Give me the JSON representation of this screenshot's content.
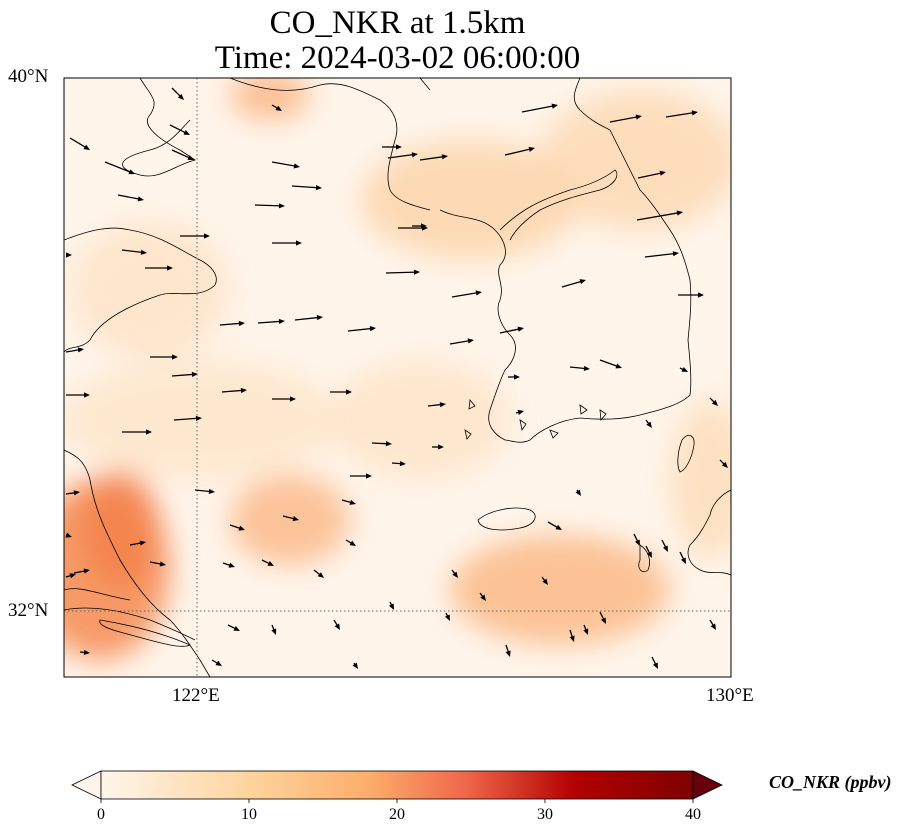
{
  "title": {
    "line1": "CO_NKR at 1.5km",
    "line2": "Time: 2024-03-02 06:00:00"
  },
  "map": {
    "extent": {
      "lon_min": 120,
      "lon_max": 130,
      "lat_min": 31,
      "lat_max": 40
    },
    "gridlines": {
      "lons": [
        122
      ],
      "lats": [
        32
      ],
      "style": "dotted"
    },
    "lat_labels": [
      "40°N",
      "32°N"
    ],
    "lon_labels": [
      "122°E",
      "130°E"
    ],
    "background_color": "#fff5eb"
  },
  "colorbar": {
    "label": "CO_NKR (ppbv)",
    "ticks": [
      "0",
      "10",
      "20",
      "30",
      "40"
    ],
    "min": 0,
    "max": 40,
    "cmap": "Oranges-Reds",
    "extend": "both",
    "colors": [
      "#fff5eb",
      "#fdd49e",
      "#fdae6b",
      "#f16913",
      "#cb181d",
      "#67000d"
    ]
  }
}
